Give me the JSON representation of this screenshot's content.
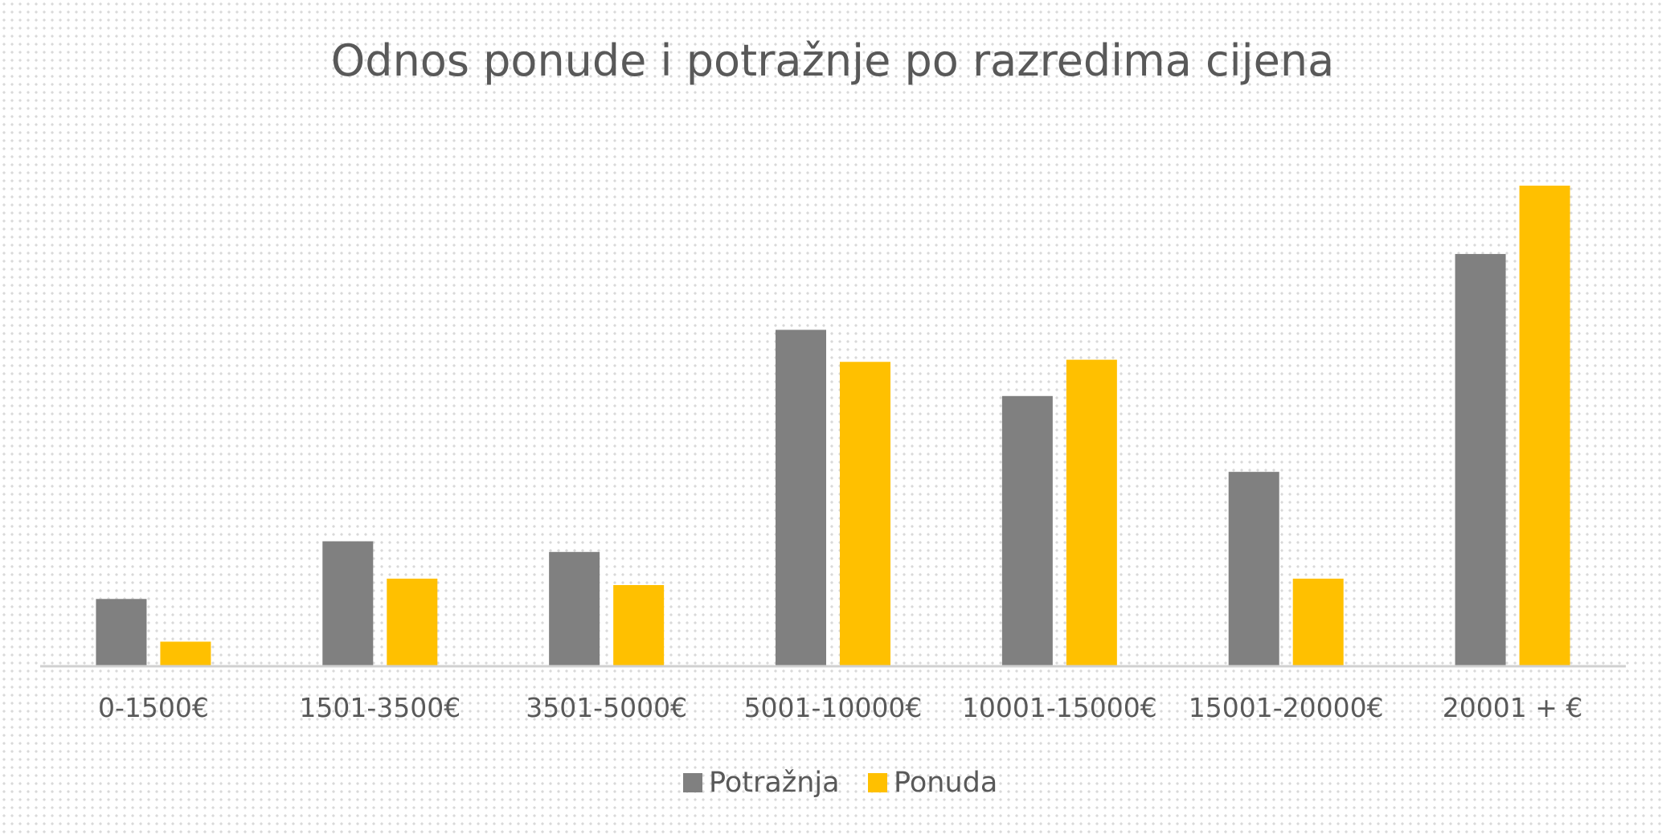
{
  "chart_data": {
    "type": "bar",
    "title": "Odnos ponude i potražnje po razredima cijena",
    "categories": [
      "0-1500€",
      "1501-3500€",
      "3501-5000€",
      "5001-10000€",
      "10001-15000€",
      "15001-20000€",
      "20001 + €"
    ],
    "series": [
      {
        "name": "Potražnja",
        "color": "#808080",
        "values": [
          63,
          117,
          107,
          315,
          253,
          182,
          386
        ]
      },
      {
        "name": "Ponuda",
        "color": "#FFC000",
        "values": [
          23,
          82,
          76,
          285,
          287,
          82,
          450
        ]
      }
    ],
    "ylim": [
      0,
      480
    ],
    "grid": false,
    "legend": "bottom"
  }
}
